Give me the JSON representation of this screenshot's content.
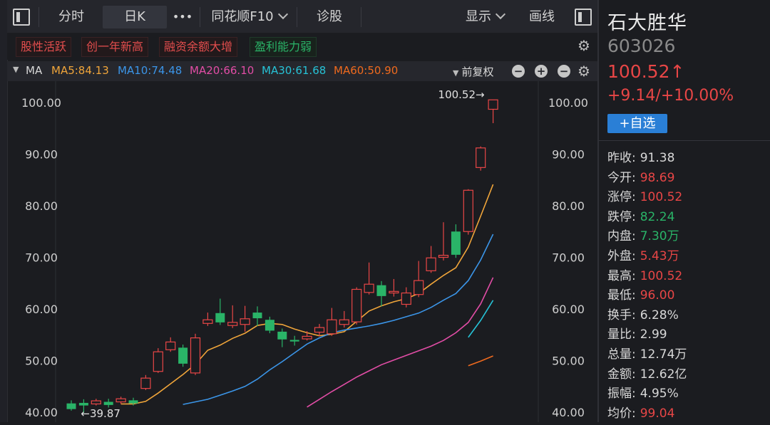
{
  "toolbar": {
    "tabs": [
      {
        "label": "分时"
      },
      {
        "label": "日K"
      },
      {
        "label": "•••"
      },
      {
        "label": "同花顺F10"
      },
      {
        "label": "诊股"
      },
      {
        "label": "显示"
      },
      {
        "label": "画线"
      }
    ]
  },
  "tags": [
    "股性活跃",
    "创一年新高",
    "融资余额大增",
    "盈利能力弱"
  ],
  "ma": {
    "label": "MA",
    "items": [
      {
        "label": "MA5:84.13",
        "color": "#f0a53a"
      },
      {
        "label": "MA10:74.48",
        "color": "#3b95e8"
      },
      {
        "label": "MA20:66.10",
        "color": "#e24da6"
      },
      {
        "label": "MA30:61.68",
        "color": "#26c2d6"
      },
      {
        "label": "MA60:50.90",
        "color": "#ef6a1e"
      }
    ],
    "adjust": "前复权"
  },
  "stock": {
    "name": "石大胜华",
    "code": "603026",
    "price": "100.52↑",
    "change": "+9.14/+10.00%",
    "add_label": "+自选"
  },
  "stats": [
    {
      "k": "昨收:",
      "v": "91.38",
      "color": "#d8d8d8"
    },
    {
      "k": "今开:",
      "v": "98.69",
      "color": "#e84646"
    },
    {
      "k": "涨停:",
      "v": "100.52",
      "color": "#e84646"
    },
    {
      "k": "跌停:",
      "v": "82.24",
      "color": "#2ab468"
    },
    {
      "k": "内盘:",
      "v": "7.30万",
      "color": "#2ab468"
    },
    {
      "k": "外盘:",
      "v": "5.43万",
      "color": "#e84646"
    },
    {
      "k": "最高:",
      "v": "100.52",
      "color": "#e84646"
    },
    {
      "k": "最低:",
      "v": "96.00",
      "color": "#e84646"
    },
    {
      "k": "换手:",
      "v": "6.28%",
      "color": "#d8d8d8"
    },
    {
      "k": "量比:",
      "v": "2.99",
      "color": "#d8d8d8"
    },
    {
      "k": "总量:",
      "v": "12.74万",
      "color": "#d8d8d8"
    },
    {
      "k": "金额:",
      "v": "12.62亿",
      "color": "#d8d8d8"
    },
    {
      "k": "振幅:",
      "v": "4.95%",
      "color": "#d8d8d8"
    },
    {
      "k": "均价:",
      "v": "99.04",
      "color": "#e84646"
    }
  ],
  "chart_data": {
    "type": "candlestick",
    "y_ticks": [
      "100.00",
      "90.00",
      "80.00",
      "70.00",
      "60.00",
      "50.00",
      "40.00"
    ],
    "ylim": [
      40,
      100
    ],
    "high_label": "100.52→",
    "low_label": "←39.87",
    "colors": {
      "up": "#e84646",
      "down": "#2ab468"
    },
    "candles": [
      {
        "o": 41.7,
        "c": 40.6,
        "h": 42.3,
        "l": 40.3
      },
      {
        "o": 41.8,
        "c": 41.3,
        "h": 42.5,
        "l": 39.87
      },
      {
        "o": 41.6,
        "c": 42.2,
        "h": 42.6,
        "l": 41.3
      },
      {
        "o": 42.0,
        "c": 41.4,
        "h": 42.6,
        "l": 40.9
      },
      {
        "o": 42.0,
        "c": 42.6,
        "h": 43.0,
        "l": 41.6
      },
      {
        "o": 42.3,
        "c": 41.7,
        "h": 42.8,
        "l": 41.3
      },
      {
        "o": 44.6,
        "c": 46.6,
        "h": 47.2,
        "l": 44.3
      },
      {
        "o": 47.9,
        "c": 51.7,
        "h": 52.4,
        "l": 47.6
      },
      {
        "o": 52.1,
        "c": 53.6,
        "h": 54.5,
        "l": 51.7
      },
      {
        "o": 52.5,
        "c": 49.4,
        "h": 53.1,
        "l": 48.8
      },
      {
        "o": 47.6,
        "c": 54.4,
        "h": 55.2,
        "l": 47.2
      },
      {
        "o": 57.2,
        "c": 57.9,
        "h": 59.3,
        "l": 56.7
      },
      {
        "o": 59.2,
        "c": 57.4,
        "h": 62.0,
        "l": 56.9
      },
      {
        "o": 56.8,
        "c": 57.4,
        "h": 60.7,
        "l": 56.3
      },
      {
        "o": 57.0,
        "c": 58.1,
        "h": 60.6,
        "l": 55.6
      },
      {
        "o": 59.3,
        "c": 58.2,
        "h": 60.5,
        "l": 56.7
      },
      {
        "o": 57.9,
        "c": 55.8,
        "h": 58.5,
        "l": 55.3
      },
      {
        "o": 55.6,
        "c": 54.1,
        "h": 56.2,
        "l": 52.6
      },
      {
        "o": 54.0,
        "c": 53.7,
        "h": 54.8,
        "l": 52.9
      },
      {
        "o": 54.2,
        "c": 54.7,
        "h": 55.7,
        "l": 53.9
      },
      {
        "o": 55.5,
        "c": 56.4,
        "h": 57.1,
        "l": 54.7
      },
      {
        "o": 55.2,
        "c": 57.9,
        "h": 60.2,
        "l": 54.8
      },
      {
        "o": 57.0,
        "c": 57.9,
        "h": 59.6,
        "l": 56.4
      },
      {
        "o": 57.5,
        "c": 63.8,
        "h": 64.2,
        "l": 57.0
      },
      {
        "o": 63.2,
        "c": 64.8,
        "h": 69.0,
        "l": 62.8
      },
      {
        "o": 64.6,
        "c": 62.5,
        "h": 65.4,
        "l": 60.5
      },
      {
        "o": 63.1,
        "c": 63.4,
        "h": 65.8,
        "l": 62.4
      },
      {
        "o": 60.9,
        "c": 63.1,
        "h": 64.2,
        "l": 60.3
      },
      {
        "o": 62.8,
        "c": 65.5,
        "h": 69.3,
        "l": 62.3
      },
      {
        "o": 67.4,
        "c": 69.9,
        "h": 72.2,
        "l": 67.0
      },
      {
        "o": 70.0,
        "c": 70.4,
        "h": 76.8,
        "l": 69.4
      },
      {
        "o": 75.0,
        "c": 70.5,
        "h": 76.4,
        "l": 69.9
      },
      {
        "o": 75.0,
        "c": 83.0,
        "h": 83.2,
        "l": 74.4
      },
      {
        "o": 87.4,
        "c": 91.2,
        "h": 91.5,
        "l": 86.8
      },
      {
        "o": 98.69,
        "c": 100.52,
        "h": 100.52,
        "l": 96.0
      }
    ],
    "series": [
      {
        "name": "MA5",
        "color": "#f0a53a",
        "values": [
          null,
          null,
          null,
          null,
          41.6,
          41.6,
          42.1,
          43.7,
          45.5,
          47.3,
          49.3,
          52.0,
          53.0,
          54.3,
          55.3,
          56.8,
          57.2,
          57.0,
          56.1,
          55.4,
          54.8,
          55.1,
          55.6,
          57.6,
          59.6,
          60.6,
          61.4,
          62.0,
          63.0,
          64.8,
          66.5,
          68.0,
          72.0,
          78.0,
          84.13
        ]
      },
      {
        "name": "MA10",
        "color": "#3b95e8",
        "values": [
          null,
          null,
          null,
          null,
          null,
          null,
          null,
          null,
          null,
          41.5,
          42.0,
          42.5,
          43.3,
          44.1,
          45.0,
          46.4,
          48.2,
          49.8,
          51.5,
          53.2,
          54.4,
          55.4,
          55.9,
          56.3,
          56.7,
          57.2,
          57.8,
          58.5,
          59.2,
          60.3,
          61.7,
          63.0,
          65.5,
          69.5,
          74.48
        ]
      },
      {
        "name": "MA20",
        "color": "#e24da6",
        "values": [
          null,
          null,
          null,
          null,
          null,
          null,
          null,
          null,
          null,
          null,
          null,
          null,
          null,
          null,
          null,
          null,
          null,
          null,
          null,
          41.0,
          42.5,
          44.0,
          45.4,
          46.8,
          48.0,
          49.2,
          50.1,
          51.0,
          51.9,
          52.8,
          53.9,
          55.4,
          57.4,
          61.0,
          66.1
        ]
      },
      {
        "name": "MA30",
        "color": "#26c2d6",
        "values": [
          null,
          null,
          null,
          null,
          null,
          null,
          null,
          null,
          null,
          null,
          null,
          null,
          null,
          null,
          null,
          null,
          null,
          null,
          null,
          null,
          null,
          null,
          null,
          null,
          null,
          null,
          null,
          null,
          null,
          null,
          null,
          null,
          54.5,
          57.8,
          61.68
        ]
      },
      {
        "name": "MA60",
        "color": "#ef6a1e",
        "values": [
          null,
          null,
          null,
          null,
          null,
          null,
          null,
          null,
          null,
          null,
          null,
          null,
          null,
          null,
          null,
          null,
          null,
          null,
          null,
          null,
          null,
          null,
          null,
          null,
          null,
          null,
          null,
          null,
          null,
          null,
          null,
          null,
          49.0,
          49.9,
          50.9
        ]
      }
    ]
  }
}
